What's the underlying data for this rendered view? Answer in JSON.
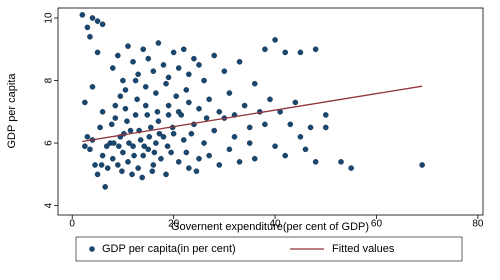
{
  "chart_data": {
    "type": "scatter",
    "xlabel": "Governent expenditure(per cent of GDP)",
    "ylabel": "GDP per capita",
    "xlim": [
      -2.8,
      81
    ],
    "ylim": [
      3.7,
      10.32
    ],
    "xticks": [
      0,
      20,
      40,
      60,
      80
    ],
    "yticks": [
      4,
      6,
      8,
      10
    ],
    "series": [
      {
        "name": "GDP per capita(in per cent)",
        "color": "#1a476f",
        "type": "scatter",
        "x": [
          2.5,
          3,
          3.5,
          4,
          4.5,
          5,
          5.5,
          6,
          6.5,
          7,
          7.5,
          8,
          8.5,
          9,
          9.5,
          10,
          10.5,
          11,
          11.5,
          12,
          12.5,
          13,
          13.5,
          14,
          14.5,
          15,
          15.5,
          16,
          16.5,
          17,
          17.5,
          18,
          18.5,
          19,
          19.5,
          20,
          21,
          22,
          23,
          24,
          25,
          8.2,
          9.2,
          10.2,
          11.2,
          12.2,
          13.2,
          14.2,
          15.2,
          16.2,
          17.2,
          9.8,
          11.8,
          13.8,
          15.8,
          7.8,
          10.8,
          12.8,
          14.8,
          16.8,
          18.8,
          6.8,
          5.8,
          19.8,
          21.5,
          22.5,
          23.5,
          24.5,
          26,
          27,
          28,
          29,
          30,
          31,
          32,
          33,
          35,
          36,
          38,
          40,
          42,
          45,
          48,
          50,
          50,
          53,
          55,
          69,
          8,
          9,
          10,
          11,
          12,
          13,
          14,
          15,
          16,
          17,
          18,
          19,
          20,
          21,
          22,
          23,
          24,
          25,
          26,
          28,
          30,
          33,
          36,
          38,
          40,
          42,
          45,
          48,
          10.5,
          12.5,
          14.5,
          16.5,
          18.5,
          20.5,
          22.5,
          9.5,
          8.5,
          27,
          31,
          34,
          37,
          39,
          41,
          44,
          2,
          3,
          4,
          5,
          6,
          3.5,
          5,
          2.5,
          4,
          6,
          19,
          21,
          23,
          25,
          26.5,
          29,
          32,
          35,
          43,
          46,
          47
        ],
        "values": [
          5.9,
          6.2,
          5.8,
          6.1,
          5.3,
          5.0,
          6.5,
          5.6,
          4.6,
          5.2,
          6.0,
          5.5,
          6.8,
          5.3,
          6.2,
          5.7,
          7.1,
          5.4,
          6.4,
          5.9,
          6.9,
          5.2,
          6.1,
          5.6,
          7.2,
          5.8,
          6.5,
          5.3,
          6.0,
          6.7,
          5.5,
          6.2,
          5.0,
          6.9,
          5.7,
          6.3,
          5.4,
          6.1,
          5.2,
          6.6,
          5.5,
          6.0,
          5.9,
          6.3,
          6.0,
          5.6,
          6.4,
          5.9,
          6.2,
          5.7,
          6.3,
          5.1,
          5.0,
          4.9,
          5.1,
          6.6,
          6.7,
          7.4,
          6.9,
          7.0,
          5.9,
          5.9,
          5.3,
          6.5,
          6.9,
          5.7,
          6.3,
          5.1,
          6.0,
          5.6,
          6.4,
          5.3,
          6.8,
          5.8,
          6.2,
          5.4,
          6.0,
          5.5,
          6.6,
          5.9,
          5.6,
          6.2,
          5.4,
          6.5,
          6.9,
          5.4,
          5.2,
          5.3,
          8.4,
          8.8,
          8.0,
          9.1,
          8.6,
          8.2,
          9.0,
          8.7,
          8.3,
          9.2,
          8.5,
          8.1,
          8.9,
          8.4,
          9.0,
          8.2,
          8.7,
          8.5,
          8.0,
          8.8,
          8.3,
          8.6,
          7.9,
          9.0,
          9.3,
          8.9,
          8.9,
          9.0,
          7.7,
          8.0,
          7.8,
          7.6,
          7.9,
          7.5,
          7.7,
          7.5,
          7.2,
          7.4,
          7.6,
          7.2,
          7.0,
          7.4,
          7.0,
          7.3,
          10.1,
          9.7,
          10.0,
          9.9,
          9.8,
          9.4,
          8.9,
          7.3,
          7.8,
          7.0,
          7.2,
          7.0,
          7.3,
          7.1,
          6.8,
          7.0,
          6.9,
          6.5,
          6.6,
          5.8,
          6.5
        ]
      },
      {
        "name": "Fitted values",
        "color": "#90353b",
        "type": "line",
        "x": [
          2,
          69
        ],
        "values": [
          6.05,
          7.82
        ]
      }
    ]
  }
}
